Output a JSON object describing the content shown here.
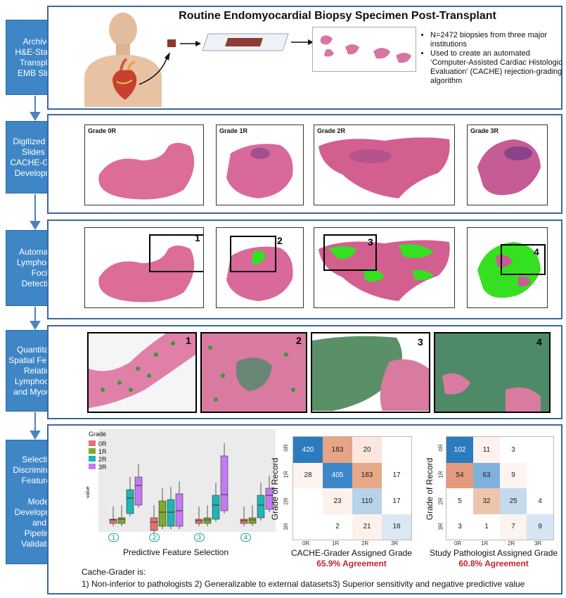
{
  "title": "Routine Endomyocardial Biopsy Specimen Post-Transplant",
  "stages": [
    {
      "lines": [
        "Archived",
        "H&E-Stained",
        "Transplant",
        "EMB Slides"
      ]
    },
    {
      "lines": [
        "Digitized EMB",
        "Slides for",
        "CACHE-Grader",
        "Development"
      ]
    },
    {
      "lines": [
        "Automated",
        "Lymphocyte",
        "Foci",
        "Detection"
      ]
    },
    {
      "lines": [
        "Quantitative",
        "Spatial Features",
        "Relating",
        "Lymphocytes",
        "and Myocytes"
      ]
    },
    {
      "lines": [
        "Selecting",
        "Discriminating",
        "Features,",
        "",
        "Model",
        "Development",
        "and",
        "Pipeline",
        "Validation"
      ]
    }
  ],
  "bullets": [
    "N=2472 biopsies from three major institutions",
    "Used to create an automated ‘Computer-Assisted Cardiac Histologic Evaluation’ (CACHE) rejection-grading algorithm"
  ],
  "grades": [
    "Grade 0R",
    "Grade 1R",
    "Grade 2R",
    "Grade 3R"
  ],
  "region_numbers": [
    "1",
    "2",
    "3",
    "4"
  ],
  "boxplot": {
    "legend_title": "Grade",
    "legend_items": [
      {
        "label": "0R",
        "color": "#e8706a"
      },
      {
        "label": "1R",
        "color": "#7daa2d"
      },
      {
        "label": "2R",
        "color": "#1fb5b2"
      },
      {
        "label": "3R",
        "color": "#c27bf2"
      }
    ],
    "ylabel": "value",
    "group_labels": [
      "1",
      "2",
      "3",
      "4"
    ],
    "caption": "Predictive Feature Selection"
  },
  "cm_axes": {
    "ylabel": "Grade of Record",
    "grades": [
      "0R",
      "1R",
      "2R",
      "3R"
    ]
  },
  "matrix_cache": {
    "values": [
      [
        "420",
        "183",
        "20",
        ""
      ],
      [
        "28",
        "405",
        "183",
        "17"
      ],
      [
        "",
        "23",
        "110",
        "17"
      ],
      [
        "",
        "2",
        "21",
        "18"
      ]
    ],
    "colors": [
      [
        "#2c7bbf",
        "#e6a585",
        "#fbe7de",
        "#ffffff"
      ],
      [
        "#fdf4f0",
        "#3d87c8",
        "#e8a989",
        "#ffffff"
      ],
      [
        "#ffffff",
        "#fdf1ec",
        "#b6d3ea",
        "#ffffff"
      ],
      [
        "#ffffff",
        "#ffffff",
        "#fdf1ec",
        "#dbe8f4"
      ]
    ],
    "xlabel": "CACHE-Grader Assigned Grade",
    "agreement": "65.9% Agreement"
  },
  "matrix_path": {
    "values": [
      [
        "102",
        "11",
        "3",
        ""
      ],
      [
        "54",
        "63",
        "9",
        ""
      ],
      [
        "5",
        "32",
        "25",
        "4"
      ],
      [
        "3",
        "1",
        "7",
        "9"
      ]
    ],
    "colors": [
      [
        "#2c7bbf",
        "#fdf2ed",
        "#ffffff",
        "#ffffff"
      ],
      [
        "#e39a7d",
        "#7fb1dd",
        "#fdf4f0",
        "#ffffff"
      ],
      [
        "#ffffff",
        "#efc4ad",
        "#c4dbee",
        "#ffffff"
      ],
      [
        "#ffffff",
        "#ffffff",
        "#fdf4f0",
        "#d5e5f3"
      ]
    ],
    "xlabel": "Study Pathologist Assigned Grade",
    "agreement": "60.8% Agreement"
  },
  "summary": {
    "lead": "Cache-Grader is:",
    "points": "1) Non-inferior to pathologists 2) Generalizable to external datasets3) Superior sensitivity and negative predictive value"
  }
}
